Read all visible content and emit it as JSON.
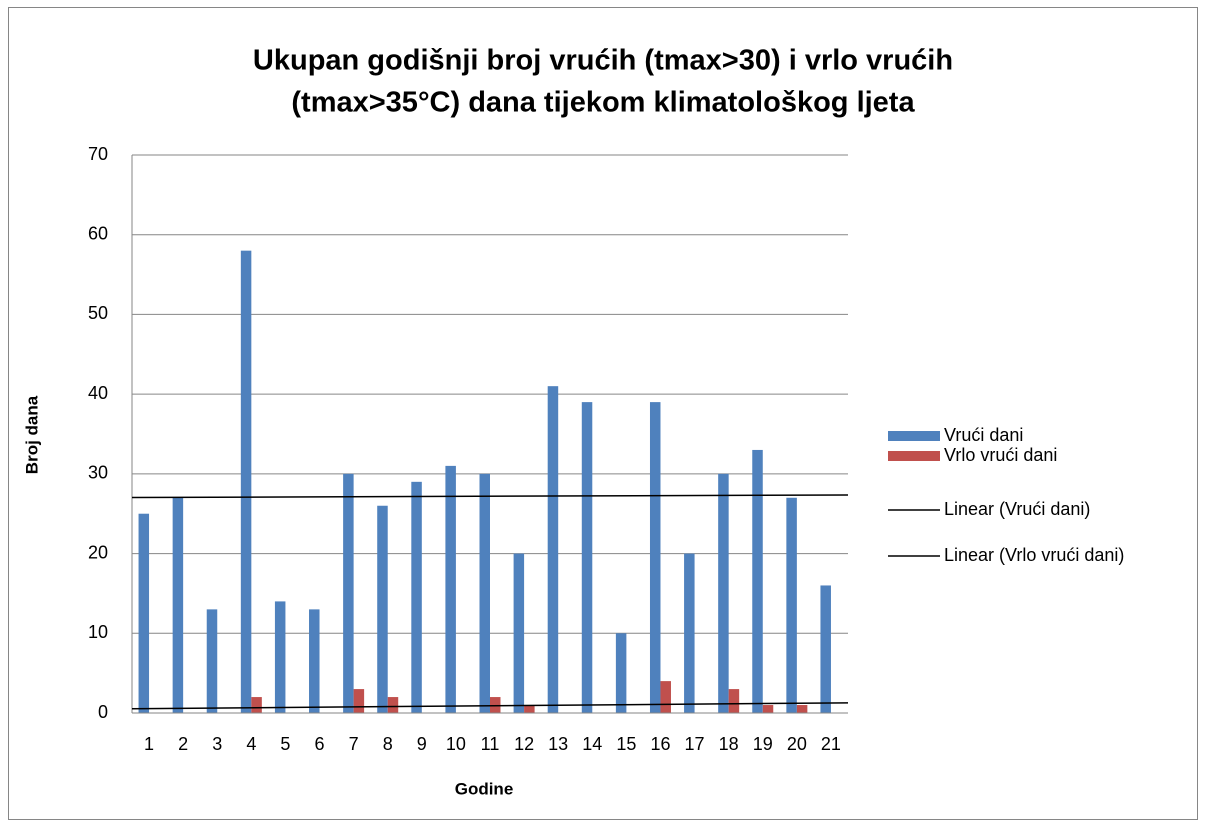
{
  "chart_data": {
    "type": "bar",
    "title": [
      "Ukupan godišnji broj vrućih (tmax>30) i vrlo vrućih",
      "(tmax>35°C) dana tijekom klimatološkog ljeta"
    ],
    "x_label": "Godine",
    "y_label": "Broj dana",
    "categories": [
      "1",
      "2",
      "3",
      "4",
      "5",
      "6",
      "7",
      "8",
      "9",
      "10",
      "11",
      "12",
      "13",
      "14",
      "15",
      "16",
      "17",
      "18",
      "19",
      "20",
      "21"
    ],
    "series": [
      {
        "name": "Vrući dani",
        "color": "#4f81bd",
        "values": [
          25,
          27,
          13,
          58,
          14,
          13,
          30,
          26,
          29,
          31,
          30,
          20,
          41,
          39,
          10,
          39,
          20,
          30,
          33,
          27,
          16
        ],
        "trendline": {
          "name": "Linear (Vrući dani)",
          "color": "#000000"
        }
      },
      {
        "name": "Vrlo vrući dani",
        "color": "#c0504d",
        "values": [
          0,
          0,
          0,
          2,
          0,
          0,
          3,
          2,
          0,
          0,
          2,
          1,
          0,
          0,
          0,
          4,
          0,
          3,
          1,
          1,
          0
        ],
        "trendline": {
          "name": "Linear (Vrlo vrući dani)",
          "color": "#000000"
        }
      }
    ],
    "ylim": [
      0,
      70
    ],
    "yticks": [
      0,
      10,
      20,
      30,
      40,
      50,
      60,
      70
    ],
    "grid": true,
    "legend": "right"
  }
}
